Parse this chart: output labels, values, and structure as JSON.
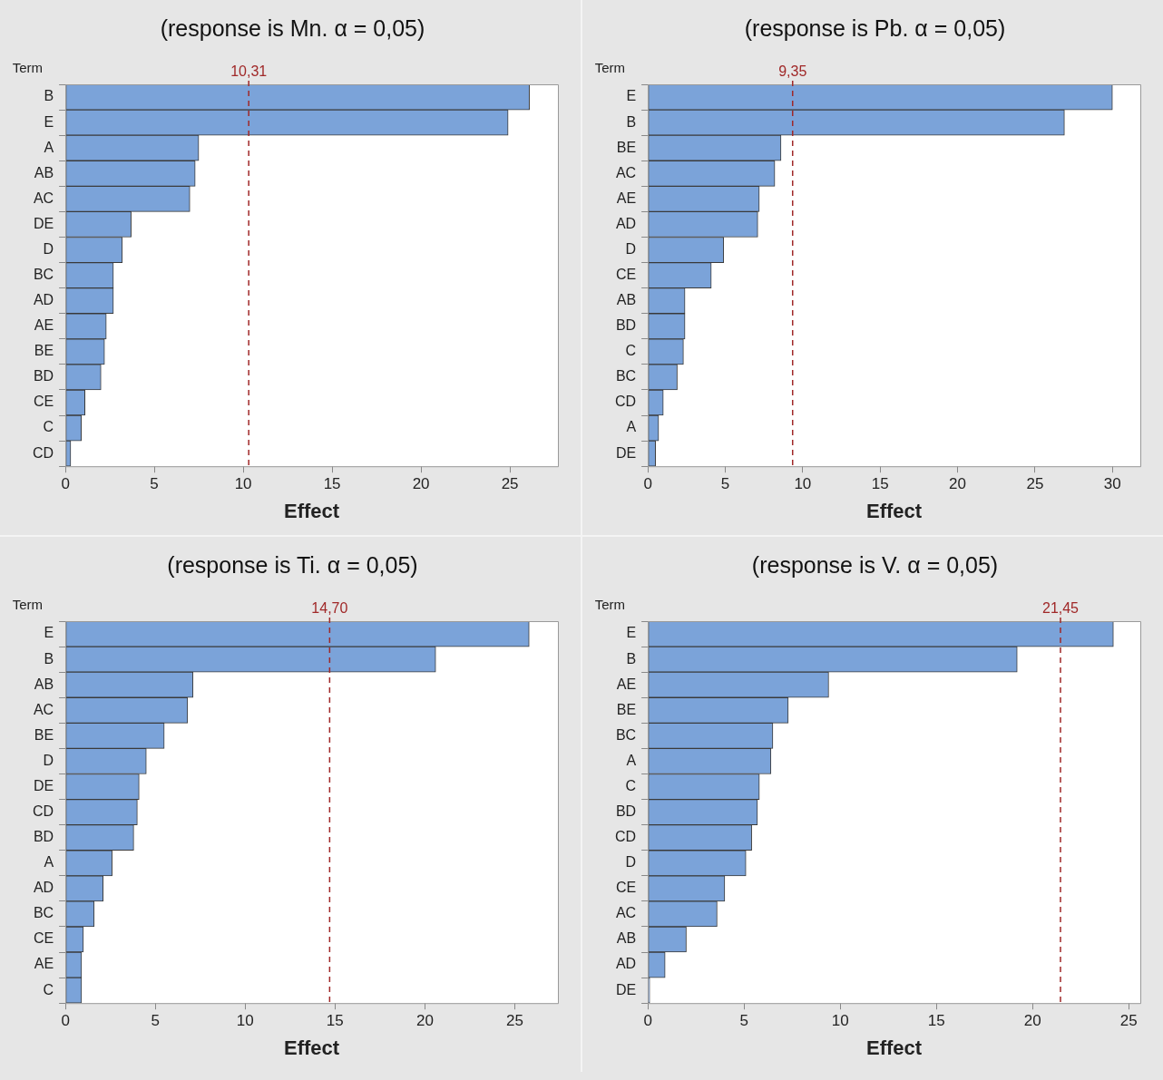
{
  "chart_data": [
    {
      "type": "bar",
      "orientation": "horizontal",
      "title": "(response is Mn. α = 0,05)",
      "xlabel": "Effect",
      "ylabel": "Term",
      "color": "#7ba3d9",
      "categories": [
        "B",
        "E",
        "A",
        "AB",
        "AC",
        "DE",
        "D",
        "BC",
        "AD",
        "AE",
        "BE",
        "BD",
        "CE",
        "C",
        "CD"
      ],
      "values": [
        26.1,
        24.9,
        7.5,
        7.3,
        7.0,
        3.7,
        3.2,
        2.7,
        2.7,
        2.3,
        2.2,
        2.0,
        1.1,
        0.9,
        0.3
      ],
      "xlim": [
        0,
        27.7
      ],
      "xticks": [
        0,
        5,
        10,
        15,
        20,
        25
      ],
      "ref_lines": [
        {
          "axis": "x",
          "value": 10.31,
          "label": "10,31",
          "color": "#a02828",
          "line_style": "dashed"
        }
      ]
    },
    {
      "type": "bar",
      "orientation": "horizontal",
      "title": "(response is Pb. α = 0,05)",
      "xlabel": "Effect",
      "ylabel": "Term",
      "color": "#7ba3d9",
      "categories": [
        "E",
        "B",
        "BE",
        "AC",
        "AE",
        "AD",
        "D",
        "CE",
        "AB",
        "BD",
        "C",
        "BC",
        "CD",
        "A",
        "DE"
      ],
      "values": [
        30.0,
        26.9,
        8.6,
        8.2,
        7.2,
        7.1,
        4.9,
        4.1,
        2.4,
        2.4,
        2.3,
        1.9,
        1.0,
        0.7,
        0.5
      ],
      "xlim": [
        0,
        31.8
      ],
      "xticks": [
        0,
        5,
        10,
        15,
        20,
        25,
        30
      ],
      "ref_lines": [
        {
          "axis": "x",
          "value": 9.35,
          "label": "9,35",
          "color": "#a02828",
          "line_style": "dashed"
        }
      ]
    },
    {
      "type": "bar",
      "orientation": "horizontal",
      "title": "(response is Ti. α = 0,05)",
      "xlabel": "Effect",
      "ylabel": "Term",
      "color": "#7ba3d9",
      "categories": [
        "E",
        "B",
        "AB",
        "AC",
        "BE",
        "D",
        "DE",
        "CD",
        "BD",
        "A",
        "AD",
        "BC",
        "CE",
        "AE",
        "C"
      ],
      "values": [
        25.8,
        20.6,
        7.1,
        6.8,
        5.5,
        4.5,
        4.1,
        4.0,
        3.8,
        2.6,
        2.1,
        1.6,
        1.0,
        0.9,
        0.9
      ],
      "xlim": [
        0,
        27.4
      ],
      "xticks": [
        0,
        5,
        10,
        15,
        20,
        25
      ],
      "ref_lines": [
        {
          "axis": "x",
          "value": 14.7,
          "label": "14,70",
          "color": "#a02828",
          "line_style": "dashed"
        }
      ]
    },
    {
      "type": "bar",
      "orientation": "horizontal",
      "title": "(response is V. α = 0,05)",
      "xlabel": "Effect",
      "ylabel": "Term",
      "color": "#7ba3d9",
      "categories": [
        "E",
        "B",
        "AE",
        "BE",
        "BC",
        "A",
        "C",
        "BD",
        "CD",
        "D",
        "CE",
        "AC",
        "AB",
        "AD",
        "DE"
      ],
      "values": [
        24.2,
        19.2,
        9.4,
        7.3,
        6.5,
        6.4,
        5.8,
        5.7,
        5.4,
        5.1,
        4.0,
        3.6,
        2.0,
        0.9,
        0.1
      ],
      "xlim": [
        0,
        25.6
      ],
      "xticks": [
        0,
        5,
        10,
        15,
        20,
        25
      ],
      "ref_lines": [
        {
          "axis": "x",
          "value": 21.45,
          "label": "21,45",
          "color": "#a02828",
          "line_style": "dashed"
        }
      ]
    }
  ]
}
